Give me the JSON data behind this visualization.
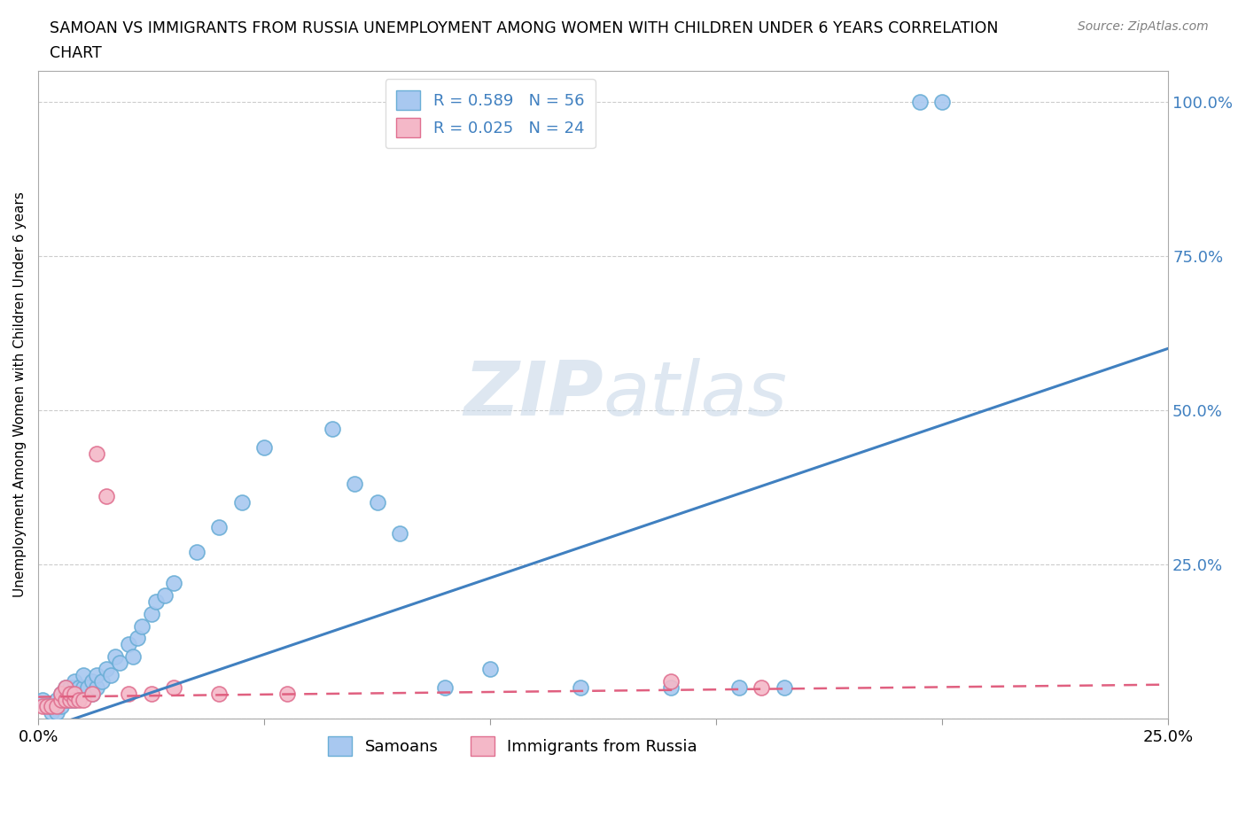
{
  "title_line1": "SAMOAN VS IMMIGRANTS FROM RUSSIA UNEMPLOYMENT AMONG WOMEN WITH CHILDREN UNDER 6 YEARS CORRELATION",
  "title_line2": "CHART",
  "source": "Source: ZipAtlas.com",
  "ylabel": "Unemployment Among Women with Children Under 6 years",
  "xlabel": "",
  "xlim": [
    0.0,
    0.25
  ],
  "ylim": [
    0.0,
    1.05
  ],
  "xticks": [
    0.0,
    0.05,
    0.1,
    0.15,
    0.2,
    0.25
  ],
  "xticklabels": [
    "0.0%",
    "",
    "",
    "",
    "",
    "25.0%"
  ],
  "yticks": [
    0.0,
    0.25,
    0.5,
    0.75,
    1.0
  ],
  "yticklabels": [
    "",
    "25.0%",
    "50.0%",
    "75.0%",
    "100.0%"
  ],
  "samoan_R": 0.589,
  "samoan_N": 56,
  "russia_R": 0.025,
  "russia_N": 24,
  "samoan_color": "#a8c8f0",
  "samoan_edge": "#6aaed6",
  "russia_color": "#f4b8c8",
  "russia_edge": "#e07090",
  "trend_samoan_color": "#4080c0",
  "trend_russia_color": "#e06080",
  "watermark_color": "#c8d8e8",
  "samoan_x": [
    0.001,
    0.002,
    0.003,
    0.003,
    0.004,
    0.004,
    0.005,
    0.005,
    0.006,
    0.006,
    0.006,
    0.007,
    0.007,
    0.007,
    0.008,
    0.008,
    0.008,
    0.009,
    0.009,
    0.01,
    0.01,
    0.01,
    0.011,
    0.012,
    0.012,
    0.013,
    0.013,
    0.014,
    0.015,
    0.016,
    0.017,
    0.018,
    0.02,
    0.021,
    0.022,
    0.023,
    0.025,
    0.026,
    0.028,
    0.03,
    0.035,
    0.04,
    0.045,
    0.05,
    0.065,
    0.07,
    0.075,
    0.08,
    0.09,
    0.1,
    0.12,
    0.14,
    0.155,
    0.165,
    0.195,
    0.2
  ],
  "samoan_y": [
    0.03,
    0.02,
    0.01,
    0.02,
    0.01,
    0.03,
    0.02,
    0.04,
    0.03,
    0.04,
    0.05,
    0.03,
    0.04,
    0.05,
    0.03,
    0.05,
    0.06,
    0.04,
    0.05,
    0.04,
    0.05,
    0.07,
    0.05,
    0.04,
    0.06,
    0.05,
    0.07,
    0.06,
    0.08,
    0.07,
    0.1,
    0.09,
    0.12,
    0.1,
    0.13,
    0.15,
    0.17,
    0.19,
    0.2,
    0.22,
    0.27,
    0.31,
    0.35,
    0.44,
    0.47,
    0.38,
    0.35,
    0.3,
    0.05,
    0.08,
    0.05,
    0.05,
    0.05,
    0.05,
    1.0,
    1.0
  ],
  "russia_x": [
    0.001,
    0.002,
    0.003,
    0.004,
    0.005,
    0.005,
    0.006,
    0.006,
    0.007,
    0.007,
    0.008,
    0.008,
    0.009,
    0.01,
    0.012,
    0.013,
    0.015,
    0.02,
    0.025,
    0.03,
    0.04,
    0.055,
    0.14,
    0.16
  ],
  "russia_y": [
    0.02,
    0.02,
    0.02,
    0.02,
    0.03,
    0.04,
    0.03,
    0.05,
    0.03,
    0.04,
    0.03,
    0.04,
    0.03,
    0.03,
    0.04,
    0.43,
    0.36,
    0.04,
    0.04,
    0.05,
    0.04,
    0.04,
    0.06,
    0.05
  ],
  "background_color": "#ffffff",
  "grid_color": "#cccccc",
  "trend_samoan_x0": 0.0,
  "trend_samoan_y0": -0.02,
  "trend_samoan_x1": 0.25,
  "trend_samoan_y1": 0.6,
  "trend_russia_x0": 0.0,
  "trend_russia_y0": 0.035,
  "trend_russia_x1": 0.25,
  "trend_russia_y1": 0.055
}
